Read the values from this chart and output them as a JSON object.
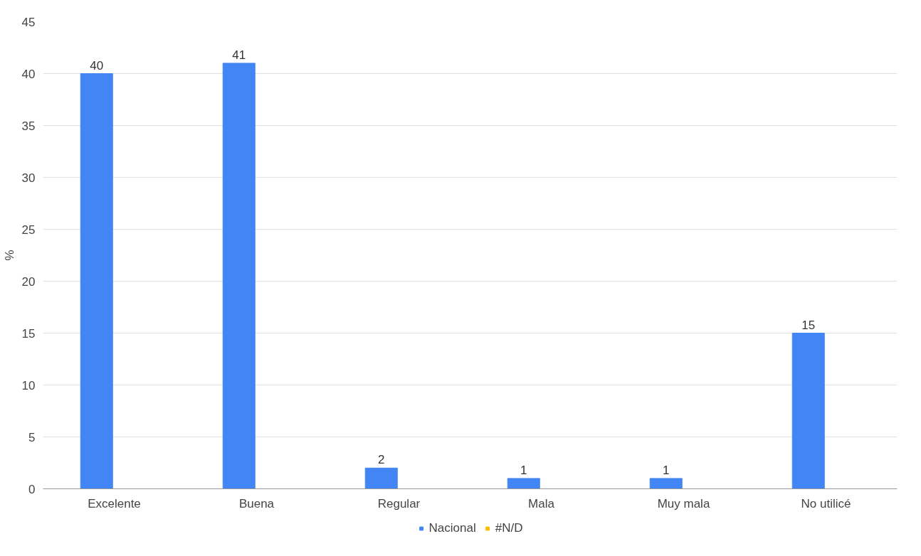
{
  "chart_data": {
    "type": "bar",
    "ylabel": "%",
    "categories": [
      "Excelente",
      "Buena",
      "Regular",
      "Mala",
      "Muy mala",
      "No utilicé"
    ],
    "series": [
      {
        "name": "Nacional",
        "color": "#4285f4",
        "values": [
          40,
          41,
          2,
          1,
          1,
          15
        ]
      },
      {
        "name": "#N/D",
        "color": "#fbbc04",
        "values": [
          null,
          null,
          null,
          null,
          null,
          null
        ]
      }
    ],
    "ylim": [
      0,
      45
    ],
    "yticks": [
      0,
      5,
      10,
      15,
      20,
      25,
      30,
      35,
      40,
      45
    ],
    "grid": "y",
    "legend": "bottom",
    "data_labels": true
  }
}
